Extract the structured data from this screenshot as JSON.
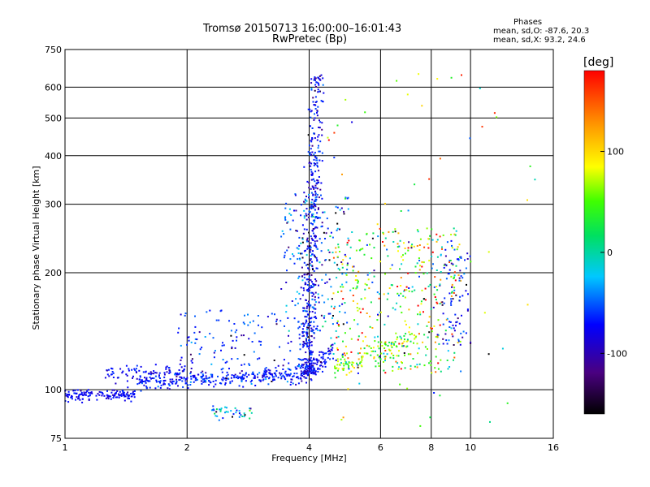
{
  "chart_data": {
    "type": "scatter",
    "title": "Tromsø 20150713 16:00:00–16:01:43",
    "subtitle": "RwPretec (Bp)",
    "phase_box": {
      "heading": "Phases",
      "line_o": "mean, sd,O: -87.6, 20.3",
      "line_x": "mean, sd,X:  93.2, 24.6"
    },
    "xlabel": "Frequency [MHz]",
    "ylabel": "Stationary phase Virtual Height [km]",
    "x_scale": "log",
    "y_scale": "log",
    "xlim": [
      1,
      16
    ],
    "ylim": [
      75,
      750
    ],
    "x_ticks": [
      1,
      2,
      4,
      6,
      8,
      10,
      16
    ],
    "x_tick_labels": [
      "1",
      "2",
      "4",
      "6",
      "8",
      "10",
      "16"
    ],
    "y_ticks": [
      75,
      100,
      200,
      300,
      400,
      500,
      600,
      750
    ],
    "y_tick_labels": [
      "75",
      "100",
      "200",
      "300",
      "400",
      "500",
      "600",
      "750"
    ],
    "grid": true,
    "colorbar": {
      "label": "[deg]",
      "min": -160,
      "max": 180,
      "ticks": [
        -100,
        0,
        100
      ],
      "tick_labels": [
        "-100",
        "0",
        "100"
      ]
    },
    "clusters": [
      {
        "kind": "trace",
        "f0": 1.0,
        "f1": 1.5,
        "h0": 97,
        "h1": 97,
        "spread": 1.5,
        "count": 140,
        "phase": -110,
        "phase_sd": 8
      },
      {
        "kind": "trace",
        "f0": 1.5,
        "f1": 3.9,
        "h0": 104,
        "h1": 110,
        "spread": 2.5,
        "count": 300,
        "phase": -105,
        "phase_sd": 15
      },
      {
        "kind": "trace",
        "f0": 1.25,
        "f1": 2.0,
        "h0": 110,
        "h1": 112,
        "spread": 3,
        "count": 80,
        "phase": -110,
        "phase_sd": 10
      },
      {
        "kind": "trace",
        "f0": 3.9,
        "f1": 4.6,
        "h0": 110,
        "h1": 125,
        "spread": 4,
        "count": 90,
        "phase": -110,
        "phase_sd": 10
      },
      {
        "kind": "trace",
        "f0": 4.6,
        "f1": 7.5,
        "h0": 115,
        "h1": 135,
        "spread": 5,
        "count": 120,
        "phase": 60,
        "phase_sd": 40
      },
      {
        "kind": "trace",
        "f0": 2.3,
        "f1": 2.9,
        "h0": 88,
        "h1": 88,
        "spread": 2,
        "count": 40,
        "phase": -60,
        "phase_sd": 40
      },
      {
        "kind": "cloud",
        "f0": 1.9,
        "f1": 3.8,
        "h0": 103,
        "h1": 160,
        "count": 140,
        "phase": -100,
        "phase_sd": 25
      },
      {
        "kind": "spike",
        "f0": 3.6,
        "f1": 4.5,
        "h0": 110,
        "h1": 650,
        "count": 500,
        "phase": -110,
        "phase_sd": 18
      },
      {
        "kind": "cloud",
        "f0": 3.4,
        "f1": 5.0,
        "h0": 140,
        "h1": 320,
        "count": 200,
        "phase": -90,
        "phase_sd": 40
      },
      {
        "kind": "cloud",
        "f0": 4.5,
        "f1": 9.5,
        "h0": 110,
        "h1": 260,
        "count": 420,
        "phase": 40,
        "phase_sd": 90
      },
      {
        "kind": "cloud",
        "f0": 8.5,
        "f1": 10.0,
        "h0": 130,
        "h1": 240,
        "count": 80,
        "phase": -110,
        "phase_sd": 20
      },
      {
        "kind": "cloud",
        "f0": 4.0,
        "f1": 15.0,
        "h0": 80,
        "h1": 650,
        "count": 70,
        "phase": 50,
        "phase_sd": 100
      }
    ]
  }
}
